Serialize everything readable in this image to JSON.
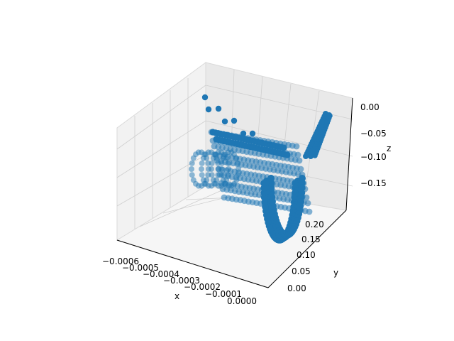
{
  "chart_data": {
    "type": "scatter",
    "projection": "3d",
    "title": "",
    "xlabel": "x",
    "ylabel": "y",
    "zlabel": "z",
    "xlim": [
      -0.00065,
      0.0
    ],
    "ylim": [
      -0.01,
      0.21
    ],
    "zlim": [
      -0.19,
      0.01
    ],
    "xticks": [
      "−0.0006",
      "−0.0005",
      "−0.0004",
      "−0.0003",
      "−0.0002",
      "−0.0001",
      "0.0000"
    ],
    "yticks": [
      "0.00",
      "0.05",
      "0.10",
      "0.15",
      "0.20"
    ],
    "zticks": [
      "0.00",
      "−0.05",
      "−0.10",
      "−0.15"
    ],
    "marker_color": "#1f77b4",
    "grid": true,
    "pane_color": "#f2f2f2",
    "series": [
      {
        "points_xyz": [
          [
            -0.00058,
            0.205,
            0.0
          ],
          [
            -0.00052,
            0.2,
            -0.005
          ],
          [
            -0.0005,
            0.195,
            -0.005
          ],
          [
            -0.00045,
            0.19,
            -0.03
          ],
          [
            -0.0004,
            0.185,
            -0.03
          ],
          [
            -0.00035,
            0.18,
            -0.05
          ],
          [
            -0.0003,
            0.175,
            -0.05
          ]
        ]
      }
    ]
  }
}
